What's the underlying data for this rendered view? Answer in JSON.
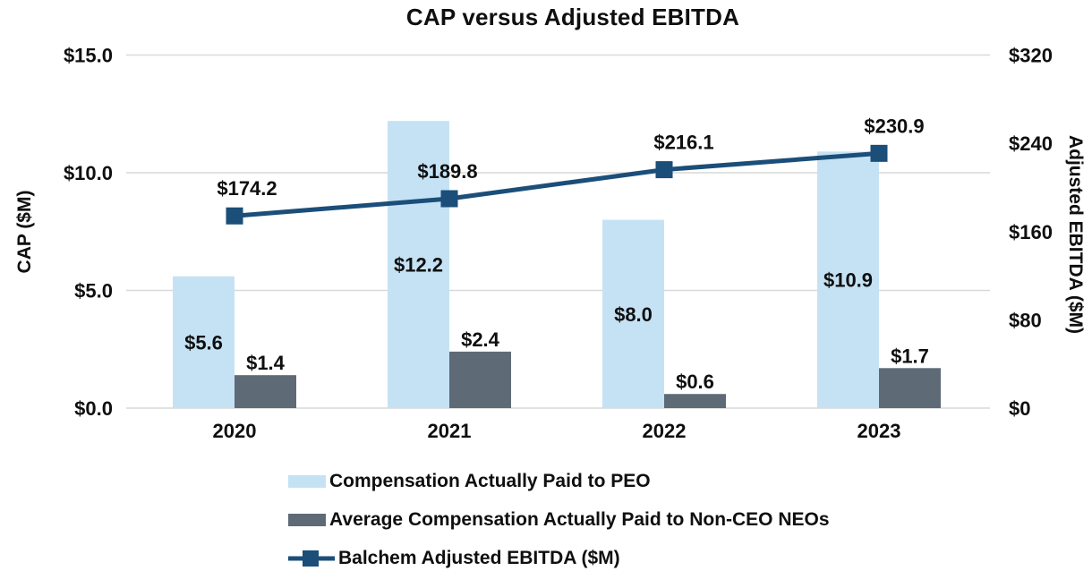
{
  "title": "CAP versus Adjusted EBITDA",
  "chart_data": {
    "type": "combo-bar-line",
    "title": "CAP versus Adjusted EBITDA",
    "categories": [
      "2020",
      "2021",
      "2022",
      "2023"
    ],
    "series": [
      {
        "name": "Compensation Actually Paid to PEO",
        "chart_type": "bar",
        "axis": "left",
        "color": "#c5e2f5",
        "values": [
          5.6,
          12.2,
          8.0,
          10.9
        ],
        "data_labels": [
          "$5.6",
          "$12.2",
          "$8.0",
          "$10.9"
        ],
        "label_placement": "inside-center"
      },
      {
        "name": "Average Compensation Actually Paid to Non-CEO NEOs",
        "chart_type": "bar",
        "axis": "left",
        "color": "#5e6b76",
        "values": [
          1.4,
          2.4,
          0.6,
          1.7
        ],
        "data_labels": [
          "$1.4",
          "$2.4",
          "$0.6",
          "$1.7"
        ],
        "label_placement": "above"
      },
      {
        "name": "Balchem Adjusted EBITDA ($M)",
        "chart_type": "line",
        "axis": "right",
        "color": "#1b4e79",
        "marker": "square",
        "values": [
          174.2,
          189.8,
          216.1,
          230.9
        ],
        "data_labels": [
          "$174.2",
          "$189.8",
          "$216.1",
          "$230.9"
        ],
        "label_placement": "above"
      }
    ],
    "left_axis": {
      "title": "CAP ($M)",
      "tick_labels": [
        "$0.0",
        "$5.0",
        "$10.0",
        "$15.0"
      ],
      "tick_values": [
        0,
        5,
        10,
        15
      ],
      "range": [
        0,
        15
      ]
    },
    "right_axis": {
      "title": "Adjusted EBITDA ($M)",
      "tick_labels": [
        "$0",
        "$80",
        "$160",
        "$240",
        "$320"
      ],
      "tick_values": [
        0,
        80,
        160,
        240,
        320
      ],
      "range": [
        0,
        320
      ]
    },
    "grid": true,
    "legend_position": "bottom-left",
    "colors": {
      "gridline": "#d9d9d9",
      "text": "#0f0f0f",
      "background": "#ffffff"
    }
  }
}
